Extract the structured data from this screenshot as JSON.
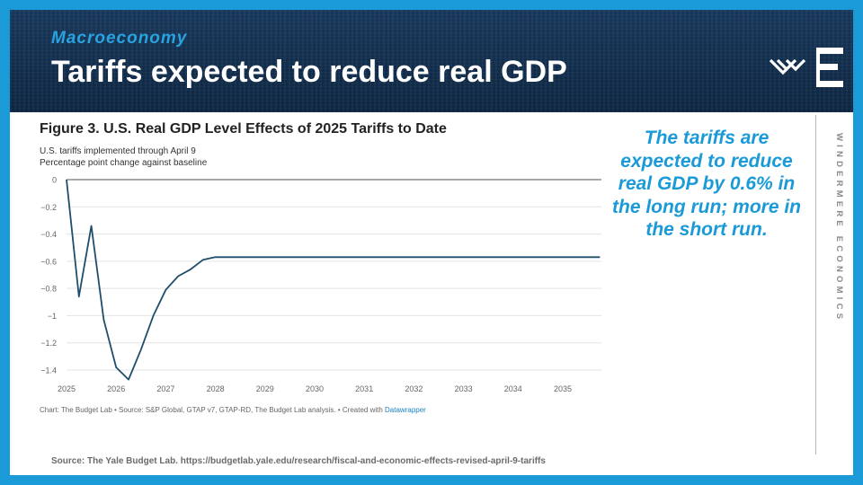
{
  "header": {
    "kicker": "Macroeconomy",
    "title": "Tariffs expected to reduce real GDP",
    "logo_icon": "windermere-logo-icon"
  },
  "chart_header": {
    "title": "Figure 3. U.S. Real GDP Level Effects of 2025 Tariffs to Date",
    "subtitle_line1": "U.S. tariffs implemented through April 9",
    "subtitle_line2": "Percentage point change against baseline"
  },
  "credit": {
    "text": "Chart: The Budget Lab • Source: S&P Global, GTAP v7, GTAP-RD, The Budget Lab analysis. • Created with ",
    "link": "Datawrapper"
  },
  "callout": {
    "text": "The tariffs are expected to reduce real GDP by 0.6% in the long run; more in the short run."
  },
  "brand": {
    "vertical_text": "WINDERMERE ECONOMICS"
  },
  "source": {
    "text": "Source: The Yale Budget Lab. https://budgetlab.yale.edu/research/fiscal-and-economic-effects-revised-april-9-tariffs"
  },
  "colors": {
    "accent": "#1a9ad6",
    "header_bg": "#0f2a46",
    "line": "#1f4e6b"
  },
  "chart_data": {
    "type": "line",
    "x_tick_labels": [
      "2025",
      "2026",
      "2027",
      "2028",
      "2029",
      "2030",
      "2031",
      "2032",
      "2033",
      "2034",
      "2035"
    ],
    "y_tick_labels": [
      "0",
      "−0.2",
      "−0.4",
      "−0.6",
      "−0.8",
      "−1",
      "−1.2",
      "−1.4"
    ],
    "y_ticks": [
      0,
      -0.2,
      -0.4,
      -0.6,
      -0.8,
      -1,
      -1.2,
      -1.4
    ],
    "xlim": [
      2025,
      2035.75
    ],
    "ylim": [
      -1.5,
      0
    ],
    "grid": true,
    "series": [
      {
        "x": [
          2025.0,
          2025.25,
          2025.5,
          2025.75,
          2026.0,
          2026.25,
          2026.5,
          2026.75,
          2027.0,
          2027.25,
          2027.5,
          2027.75,
          2028.0,
          2029.0,
          2030.0,
          2031.0,
          2032.0,
          2033.0,
          2034.0,
          2035.0,
          2035.75
        ],
        "values": [
          0.0,
          -0.86,
          -0.34,
          -1.03,
          -1.38,
          -1.47,
          -1.25,
          -1.0,
          -0.81,
          -0.71,
          -0.66,
          -0.59,
          -0.57,
          -0.57,
          -0.57,
          -0.57,
          -0.57,
          -0.57,
          -0.57,
          -0.57,
          -0.57
        ]
      }
    ]
  }
}
